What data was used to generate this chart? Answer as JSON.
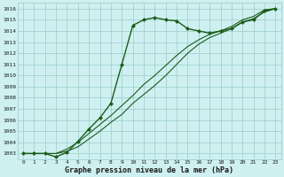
{
  "title": "Graphe pression niveau de la mer (hPa)",
  "bg_color": "#cff0f0",
  "grid_color": "#99cccc",
  "line_color": "#1a5c1a",
  "x_ticks": [
    0,
    1,
    2,
    3,
    4,
    5,
    6,
    7,
    8,
    9,
    10,
    11,
    12,
    13,
    14,
    15,
    16,
    17,
    18,
    19,
    20,
    21,
    22,
    23
  ],
  "ylim": [
    1002.5,
    1016.5
  ],
  "yticks": [
    1003,
    1004,
    1005,
    1006,
    1007,
    1008,
    1009,
    1010,
    1011,
    1012,
    1013,
    1014,
    1015,
    1016
  ],
  "series": [
    {
      "x": [
        0,
        1,
        2,
        3,
        4,
        5,
        6,
        7,
        8,
        9,
        10,
        11,
        12,
        13,
        14,
        15,
        16,
        17,
        18,
        19,
        20,
        21,
        22,
        23
      ],
      "y": [
        1003.0,
        1003.0,
        1003.0,
        1002.7,
        1003.1,
        1004.1,
        1005.2,
        1006.2,
        1007.5,
        1011.0,
        1014.5,
        1015.0,
        1015.2,
        1015.0,
        1014.9,
        1014.2,
        1014.0,
        1013.8,
        1014.0,
        1014.2,
        1014.8,
        1015.0,
        1015.8,
        1016.0
      ],
      "marker": "D",
      "markersize": 2.0,
      "linewidth": 1.0
    },
    {
      "x": [
        0,
        1,
        2,
        3,
        4,
        5,
        6,
        7,
        8,
        9,
        10,
        11,
        12,
        13,
        14,
        15,
        16,
        17,
        18,
        19,
        20,
        21,
        22,
        23
      ],
      "y": [
        1003.0,
        1003.0,
        1003.0,
        1003.0,
        1003.2,
        1003.6,
        1004.3,
        1005.0,
        1005.8,
        1006.5,
        1007.5,
        1008.3,
        1009.1,
        1010.0,
        1011.0,
        1012.0,
        1012.8,
        1013.4,
        1013.8,
        1014.2,
        1014.8,
        1015.1,
        1015.7,
        1016.0
      ],
      "marker": null,
      "markersize": 0,
      "linewidth": 0.8
    },
    {
      "x": [
        0,
        1,
        2,
        3,
        4,
        5,
        6,
        7,
        8,
        9,
        10,
        11,
        12,
        13,
        14,
        15,
        16,
        17,
        18,
        19,
        20,
        21,
        22,
        23
      ],
      "y": [
        1003.0,
        1003.0,
        1003.0,
        1003.0,
        1003.4,
        1004.0,
        1004.8,
        1005.6,
        1006.4,
        1007.3,
        1008.2,
        1009.2,
        1010.0,
        1010.9,
        1011.8,
        1012.6,
        1013.2,
        1013.7,
        1014.0,
        1014.4,
        1015.0,
        1015.3,
        1015.9,
        1016.0
      ],
      "marker": null,
      "markersize": 0,
      "linewidth": 0.8
    }
  ],
  "xlabel_fontsize": 6.0,
  "tick_fontsize": 4.5
}
